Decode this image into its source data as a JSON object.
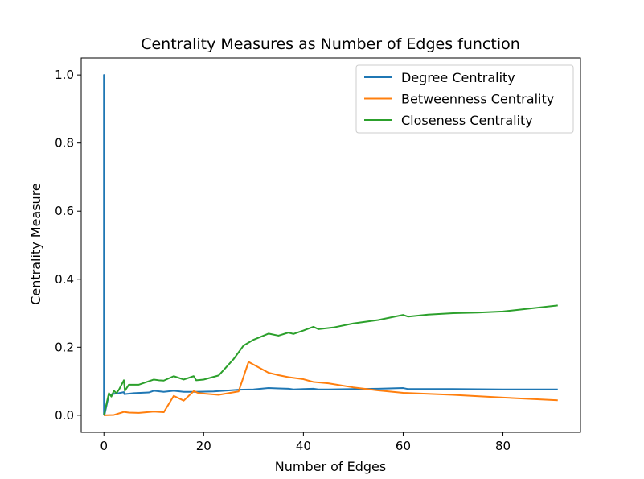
{
  "chart_data": {
    "type": "line",
    "title": "Centrality Measures as Number of Edges function",
    "xlabel": "Number of Edges",
    "ylabel": "Centrality Measure",
    "xlim": [
      -4.55,
      95.55
    ],
    "ylim": [
      -0.05,
      1.05
    ],
    "x_ticks": [
      0,
      20,
      40,
      60,
      80
    ],
    "y_ticks": [
      0.0,
      0.2,
      0.4,
      0.6,
      0.8,
      1.0
    ],
    "x_tick_labels": [
      "0",
      "20",
      "40",
      "60",
      "80"
    ],
    "y_tick_labels": [
      "0.0",
      "0.2",
      "0.4",
      "0.6",
      "0.8",
      "1.0"
    ],
    "grid": false,
    "legend_position": "upper right",
    "series": [
      {
        "name": "Degree Centrality",
        "color": "#1f77b4",
        "x": [
          0,
          0,
          0.1,
          1,
          2,
          3,
          4,
          4.1,
          6,
          9,
          10,
          12,
          14,
          16,
          18,
          22,
          25,
          27,
          30,
          33,
          35,
          37,
          38,
          40,
          42,
          43,
          45,
          50,
          55,
          60,
          61,
          70,
          80,
          91
        ],
        "y": [
          0.0,
          1.0,
          0.0,
          0.06,
          0.063,
          0.065,
          0.068,
          0.062,
          0.065,
          0.067,
          0.072,
          0.069,
          0.072,
          0.069,
          0.069,
          0.07,
          0.073,
          0.075,
          0.076,
          0.08,
          0.079,
          0.078,
          0.076,
          0.077,
          0.078,
          0.076,
          0.076,
          0.077,
          0.078,
          0.08,
          0.077,
          0.077,
          0.076,
          0.076
        ]
      },
      {
        "name": "Betweenness Centrality",
        "color": "#ff7f0e",
        "x": [
          0,
          2,
          4,
          5,
          7,
          10,
          12,
          14,
          16,
          18,
          19,
          23,
          27,
          29,
          33,
          35,
          37,
          40,
          42,
          45,
          50,
          55,
          60,
          70,
          80,
          91
        ],
        "y": [
          0.0,
          0.001,
          0.01,
          0.008,
          0.007,
          0.011,
          0.009,
          0.057,
          0.043,
          0.071,
          0.065,
          0.06,
          0.07,
          0.157,
          0.125,
          0.118,
          0.112,
          0.106,
          0.098,
          0.094,
          0.082,
          0.073,
          0.066,
          0.06,
          0.052,
          0.044
        ]
      },
      {
        "name": "Closeness Centrality",
        "color": "#2ca02c",
        "x": [
          0,
          1,
          1.5,
          2,
          2.5,
          3,
          4,
          4.2,
          5,
          7,
          9,
          10,
          11,
          12,
          14,
          16,
          18,
          18.5,
          20,
          23,
          26,
          28,
          30,
          33,
          35,
          37,
          38,
          40,
          42,
          43,
          46,
          50,
          55,
          60,
          61,
          65,
          70,
          75,
          80,
          85,
          91
        ],
        "y": [
          0.0,
          0.065,
          0.055,
          0.072,
          0.065,
          0.075,
          0.103,
          0.072,
          0.09,
          0.09,
          0.1,
          0.105,
          0.103,
          0.102,
          0.115,
          0.105,
          0.115,
          0.103,
          0.105,
          0.117,
          0.165,
          0.205,
          0.222,
          0.24,
          0.234,
          0.243,
          0.239,
          0.249,
          0.26,
          0.253,
          0.258,
          0.27,
          0.28,
          0.295,
          0.29,
          0.296,
          0.3,
          0.302,
          0.305,
          0.313,
          0.323
        ]
      }
    ]
  }
}
